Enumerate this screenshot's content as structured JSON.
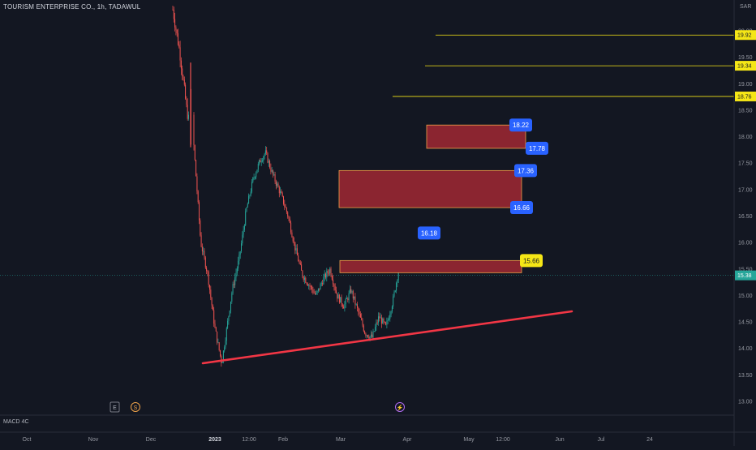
{
  "header": {
    "symbol_title": "TOURISM ENTERPRISE CO., 1h, TADAWUL",
    "currency": "SAR",
    "indicator_label": "MACD 4C"
  },
  "colors": {
    "background": "#131722",
    "up": "#26a69a",
    "down": "#ef5350",
    "zone_fill": "#8b2530",
    "zone_border": "#f0a34a",
    "trendline": "#f23645",
    "level_line": "#f5e616",
    "tag_blue": "#2962ff",
    "tag_yellow": "#f5e616",
    "last_price": "#26a69a"
  },
  "chart_data": {
    "type": "candlestick",
    "title": "TOURISM ENTERPRISE CO., 1h, TADAWUL",
    "y_axis": {
      "unit": "SAR",
      "range": [
        12.9,
        20.35
      ],
      "ticks": [
        "20.00",
        "19.50",
        "19.00",
        "18.50",
        "18.00",
        "17.50",
        "17.00",
        "16.50",
        "16.00",
        "15.50",
        "15.00",
        "14.50",
        "14.00",
        "13.50",
        "13.00"
      ]
    },
    "x_axis": {
      "ticks": [
        "Oct",
        "Nov",
        "Dec",
        "2023",
        "12:00",
        "Feb",
        "Mar",
        "Apr",
        "May",
        "12:00",
        "Jun",
        "Jul",
        "24"
      ],
      "bold_ticks": [
        "2023"
      ]
    },
    "price_path": [
      [
        0.0,
        20.4
      ],
      [
        0.04,
        19.6
      ],
      [
        0.08,
        18.5
      ],
      [
        0.12,
        17.85
      ],
      [
        0.16,
        16.0
      ],
      [
        0.2,
        15.4
      ],
      [
        0.24,
        14.4
      ],
      [
        0.28,
        13.72
      ],
      [
        0.31,
        14.4
      ],
      [
        0.34,
        15.1
      ],
      [
        0.38,
        15.7
      ],
      [
        0.42,
        16.6
      ],
      [
        0.46,
        17.2
      ],
      [
        0.5,
        17.55
      ],
      [
        0.53,
        17.7
      ],
      [
        0.57,
        17.3
      ],
      [
        0.62,
        16.9
      ],
      [
        0.66,
        16.5
      ],
      [
        0.7,
        15.9
      ],
      [
        0.74,
        15.4
      ],
      [
        0.78,
        15.2
      ],
      [
        0.82,
        15.0
      ],
      [
        0.86,
        15.3
      ],
      [
        0.9,
        15.5
      ],
      [
        0.94,
        15.0
      ],
      [
        0.98,
        14.8
      ],
      [
        1.02,
        15.1
      ],
      [
        1.06,
        14.7
      ],
      [
        1.1,
        14.3
      ],
      [
        1.14,
        14.2
      ],
      [
        1.18,
        14.6
      ],
      [
        1.22,
        14.4
      ],
      [
        1.26,
        14.9
      ],
      [
        1.3,
        15.62
      ]
    ],
    "last_price": 15.38,
    "horizontal_levels": [
      {
        "price": 19.92,
        "label": "19.92"
      },
      {
        "price": 19.34,
        "label": "19.34"
      },
      {
        "price": 18.76,
        "label": "18.76"
      }
    ],
    "zones": [
      {
        "top": 18.22,
        "bottom": 17.78,
        "top_label": "18.22",
        "bottom_label": "17.78"
      },
      {
        "top": 17.36,
        "bottom": 16.66,
        "top_label": "17.36",
        "bottom_label": "16.66"
      },
      {
        "top": 15.66,
        "bottom": 15.43,
        "top_label": "15.66"
      }
    ],
    "floating_label": {
      "price": 16.18,
      "label": "16.18"
    },
    "trendline": {
      "from": 13.72,
      "to": 14.7
    }
  },
  "markers": {
    "earnings": "E",
    "dividend": "S",
    "split": "⚡"
  }
}
